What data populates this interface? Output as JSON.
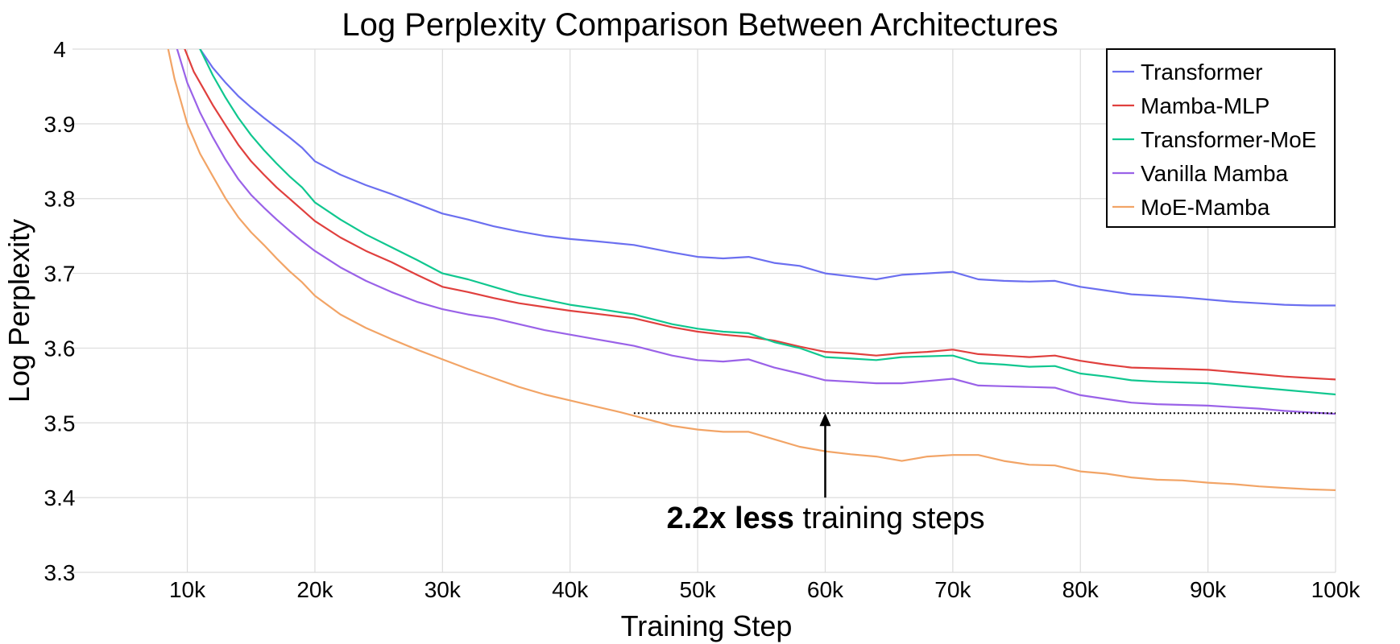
{
  "chart_data": {
    "type": "line",
    "title": "Log Perplexity Comparison Between Architectures",
    "xlabel": "Training Step",
    "ylabel": "Log Perplexity",
    "xlim": [
      1000,
      100000
    ],
    "ylim": [
      3.3,
      4.0
    ],
    "x_ticks": [
      10000,
      20000,
      30000,
      40000,
      50000,
      60000,
      70000,
      80000,
      90000,
      100000
    ],
    "x_tick_labels": [
      "10k",
      "20k",
      "30k",
      "40k",
      "50k",
      "60k",
      "70k",
      "80k",
      "90k",
      "100k"
    ],
    "y_ticks": [
      3.3,
      3.4,
      3.5,
      3.6,
      3.7,
      3.8,
      3.9,
      4.0
    ],
    "y_tick_labels": [
      "3.3",
      "3.4",
      "3.5",
      "3.6",
      "3.7",
      "3.8",
      "3.9",
      "4"
    ],
    "grid": true,
    "legend_position": "top-right",
    "series": [
      {
        "name": "Transformer",
        "color": "#6b6ff0",
        "x": [
          11000,
          12000,
          13000,
          14000,
          15000,
          16000,
          17000,
          18000,
          19000,
          20000,
          22000,
          24000,
          26000,
          28000,
          30000,
          32000,
          34000,
          36000,
          38000,
          40000,
          42000,
          45000,
          48000,
          50000,
          52000,
          54000,
          56000,
          58000,
          60000,
          62000,
          64000,
          66000,
          68000,
          70000,
          72000,
          74000,
          76000,
          78000,
          80000,
          82000,
          84000,
          86000,
          88000,
          90000,
          92000,
          94000,
          96000,
          98000,
          100000
        ],
        "values": [
          4.0,
          3.975,
          3.955,
          3.937,
          3.922,
          3.908,
          3.895,
          3.882,
          3.868,
          3.85,
          3.832,
          3.818,
          3.806,
          3.793,
          3.78,
          3.772,
          3.763,
          3.756,
          3.75,
          3.746,
          3.743,
          3.738,
          3.728,
          3.722,
          3.72,
          3.722,
          3.714,
          3.71,
          3.7,
          3.696,
          3.692,
          3.698,
          3.7,
          3.702,
          3.692,
          3.69,
          3.689,
          3.69,
          3.682,
          3.677,
          3.672,
          3.67,
          3.668,
          3.665,
          3.662,
          3.66,
          3.658,
          3.657,
          3.657
        ]
      },
      {
        "name": "Mamba-MLP",
        "color": "#e0403e",
        "x": [
          9800,
          10500,
          11000,
          12000,
          13000,
          14000,
          15000,
          16000,
          17000,
          18000,
          19000,
          20000,
          22000,
          24000,
          26000,
          28000,
          30000,
          32000,
          34000,
          36000,
          38000,
          40000,
          42000,
          45000,
          48000,
          50000,
          52000,
          54000,
          56000,
          58000,
          60000,
          62000,
          64000,
          66000,
          68000,
          70000,
          72000,
          74000,
          76000,
          78000,
          80000,
          82000,
          84000,
          86000,
          88000,
          90000,
          92000,
          94000,
          96000,
          98000,
          100000
        ],
        "values": [
          4.0,
          3.97,
          3.955,
          3.925,
          3.898,
          3.872,
          3.85,
          3.832,
          3.815,
          3.8,
          3.785,
          3.77,
          3.748,
          3.73,
          3.715,
          3.698,
          3.682,
          3.675,
          3.667,
          3.66,
          3.655,
          3.65,
          3.646,
          3.64,
          3.628,
          3.622,
          3.618,
          3.615,
          3.61,
          3.602,
          3.595,
          3.593,
          3.59,
          3.593,
          3.595,
          3.598,
          3.592,
          3.59,
          3.588,
          3.59,
          3.583,
          3.578,
          3.574,
          3.573,
          3.572,
          3.571,
          3.568,
          3.565,
          3.562,
          3.56,
          3.558
        ]
      },
      {
        "name": "Transformer-MoE",
        "color": "#10c78f",
        "x": [
          11000,
          12000,
          13000,
          14000,
          15000,
          16000,
          17000,
          18000,
          19000,
          20000,
          22000,
          24000,
          26000,
          28000,
          30000,
          32000,
          34000,
          36000,
          38000,
          40000,
          42000,
          45000,
          48000,
          50000,
          52000,
          54000,
          56000,
          58000,
          60000,
          62000,
          64000,
          66000,
          68000,
          70000,
          72000,
          74000,
          76000,
          78000,
          80000,
          82000,
          84000,
          86000,
          88000,
          90000,
          92000,
          94000,
          96000,
          98000,
          100000
        ],
        "values": [
          4.0,
          3.965,
          3.935,
          3.908,
          3.885,
          3.865,
          3.847,
          3.83,
          3.815,
          3.795,
          3.772,
          3.752,
          3.735,
          3.718,
          3.7,
          3.692,
          3.682,
          3.672,
          3.665,
          3.658,
          3.653,
          3.645,
          3.632,
          3.626,
          3.622,
          3.62,
          3.608,
          3.6,
          3.588,
          3.586,
          3.584,
          3.588,
          3.589,
          3.59,
          3.58,
          3.578,
          3.575,
          3.576,
          3.566,
          3.562,
          3.557,
          3.555,
          3.554,
          3.553,
          3.55,
          3.547,
          3.544,
          3.541,
          3.538
        ]
      },
      {
        "name": "Vanilla Mamba",
        "color": "#9a62e8",
        "x": [
          9200,
          10000,
          11000,
          12000,
          13000,
          14000,
          15000,
          16000,
          17000,
          18000,
          19000,
          20000,
          22000,
          24000,
          26000,
          28000,
          30000,
          32000,
          34000,
          36000,
          38000,
          40000,
          42000,
          45000,
          48000,
          50000,
          52000,
          54000,
          56000,
          58000,
          60000,
          62000,
          64000,
          66000,
          68000,
          70000,
          72000,
          74000,
          76000,
          78000,
          80000,
          82000,
          84000,
          86000,
          88000,
          90000,
          92000,
          94000,
          96000,
          98000,
          100000
        ],
        "values": [
          4.0,
          3.955,
          3.915,
          3.882,
          3.852,
          3.826,
          3.805,
          3.788,
          3.772,
          3.757,
          3.743,
          3.73,
          3.708,
          3.69,
          3.675,
          3.662,
          3.652,
          3.645,
          3.64,
          3.632,
          3.624,
          3.618,
          3.612,
          3.603,
          3.59,
          3.584,
          3.582,
          3.585,
          3.574,
          3.566,
          3.557,
          3.555,
          3.553,
          3.553,
          3.556,
          3.559,
          3.55,
          3.549,
          3.548,
          3.547,
          3.537,
          3.532,
          3.527,
          3.525,
          3.524,
          3.523,
          3.521,
          3.519,
          3.516,
          3.514,
          3.512
        ]
      },
      {
        "name": "MoE-Mamba",
        "color": "#f2a466",
        "x": [
          8500,
          9000,
          10000,
          11000,
          12000,
          13000,
          14000,
          15000,
          16000,
          17000,
          18000,
          19000,
          20000,
          22000,
          24000,
          26000,
          28000,
          30000,
          32000,
          34000,
          36000,
          38000,
          40000,
          42000,
          44000,
          46000,
          48000,
          50000,
          52000,
          54000,
          56000,
          58000,
          60000,
          62000,
          64000,
          66000,
          68000,
          70000,
          72000,
          74000,
          76000,
          78000,
          80000,
          82000,
          84000,
          86000,
          88000,
          90000,
          92000,
          94000,
          96000,
          98000,
          100000
        ],
        "values": [
          4.0,
          3.96,
          3.9,
          3.86,
          3.83,
          3.8,
          3.775,
          3.755,
          3.738,
          3.72,
          3.703,
          3.688,
          3.67,
          3.645,
          3.627,
          3.612,
          3.598,
          3.585,
          3.572,
          3.56,
          3.548,
          3.538,
          3.53,
          3.522,
          3.514,
          3.505,
          3.496,
          3.491,
          3.488,
          3.488,
          3.478,
          3.468,
          3.462,
          3.458,
          3.455,
          3.449,
          3.455,
          3.457,
          3.457,
          3.449,
          3.444,
          3.443,
          3.435,
          3.432,
          3.427,
          3.424,
          3.423,
          3.42,
          3.418,
          3.415,
          3.413,
          3.411,
          3.41
        ]
      }
    ],
    "reference_line": {
      "y": 3.513,
      "x_start": 45000,
      "x_end": 100000,
      "style": "dotted"
    },
    "annotation": {
      "bold_text": "2.2x less",
      "text": " training steps",
      "arrow_x": 60000,
      "arrow_tip_y": 3.513,
      "arrow_tail_y": 3.4
    }
  }
}
